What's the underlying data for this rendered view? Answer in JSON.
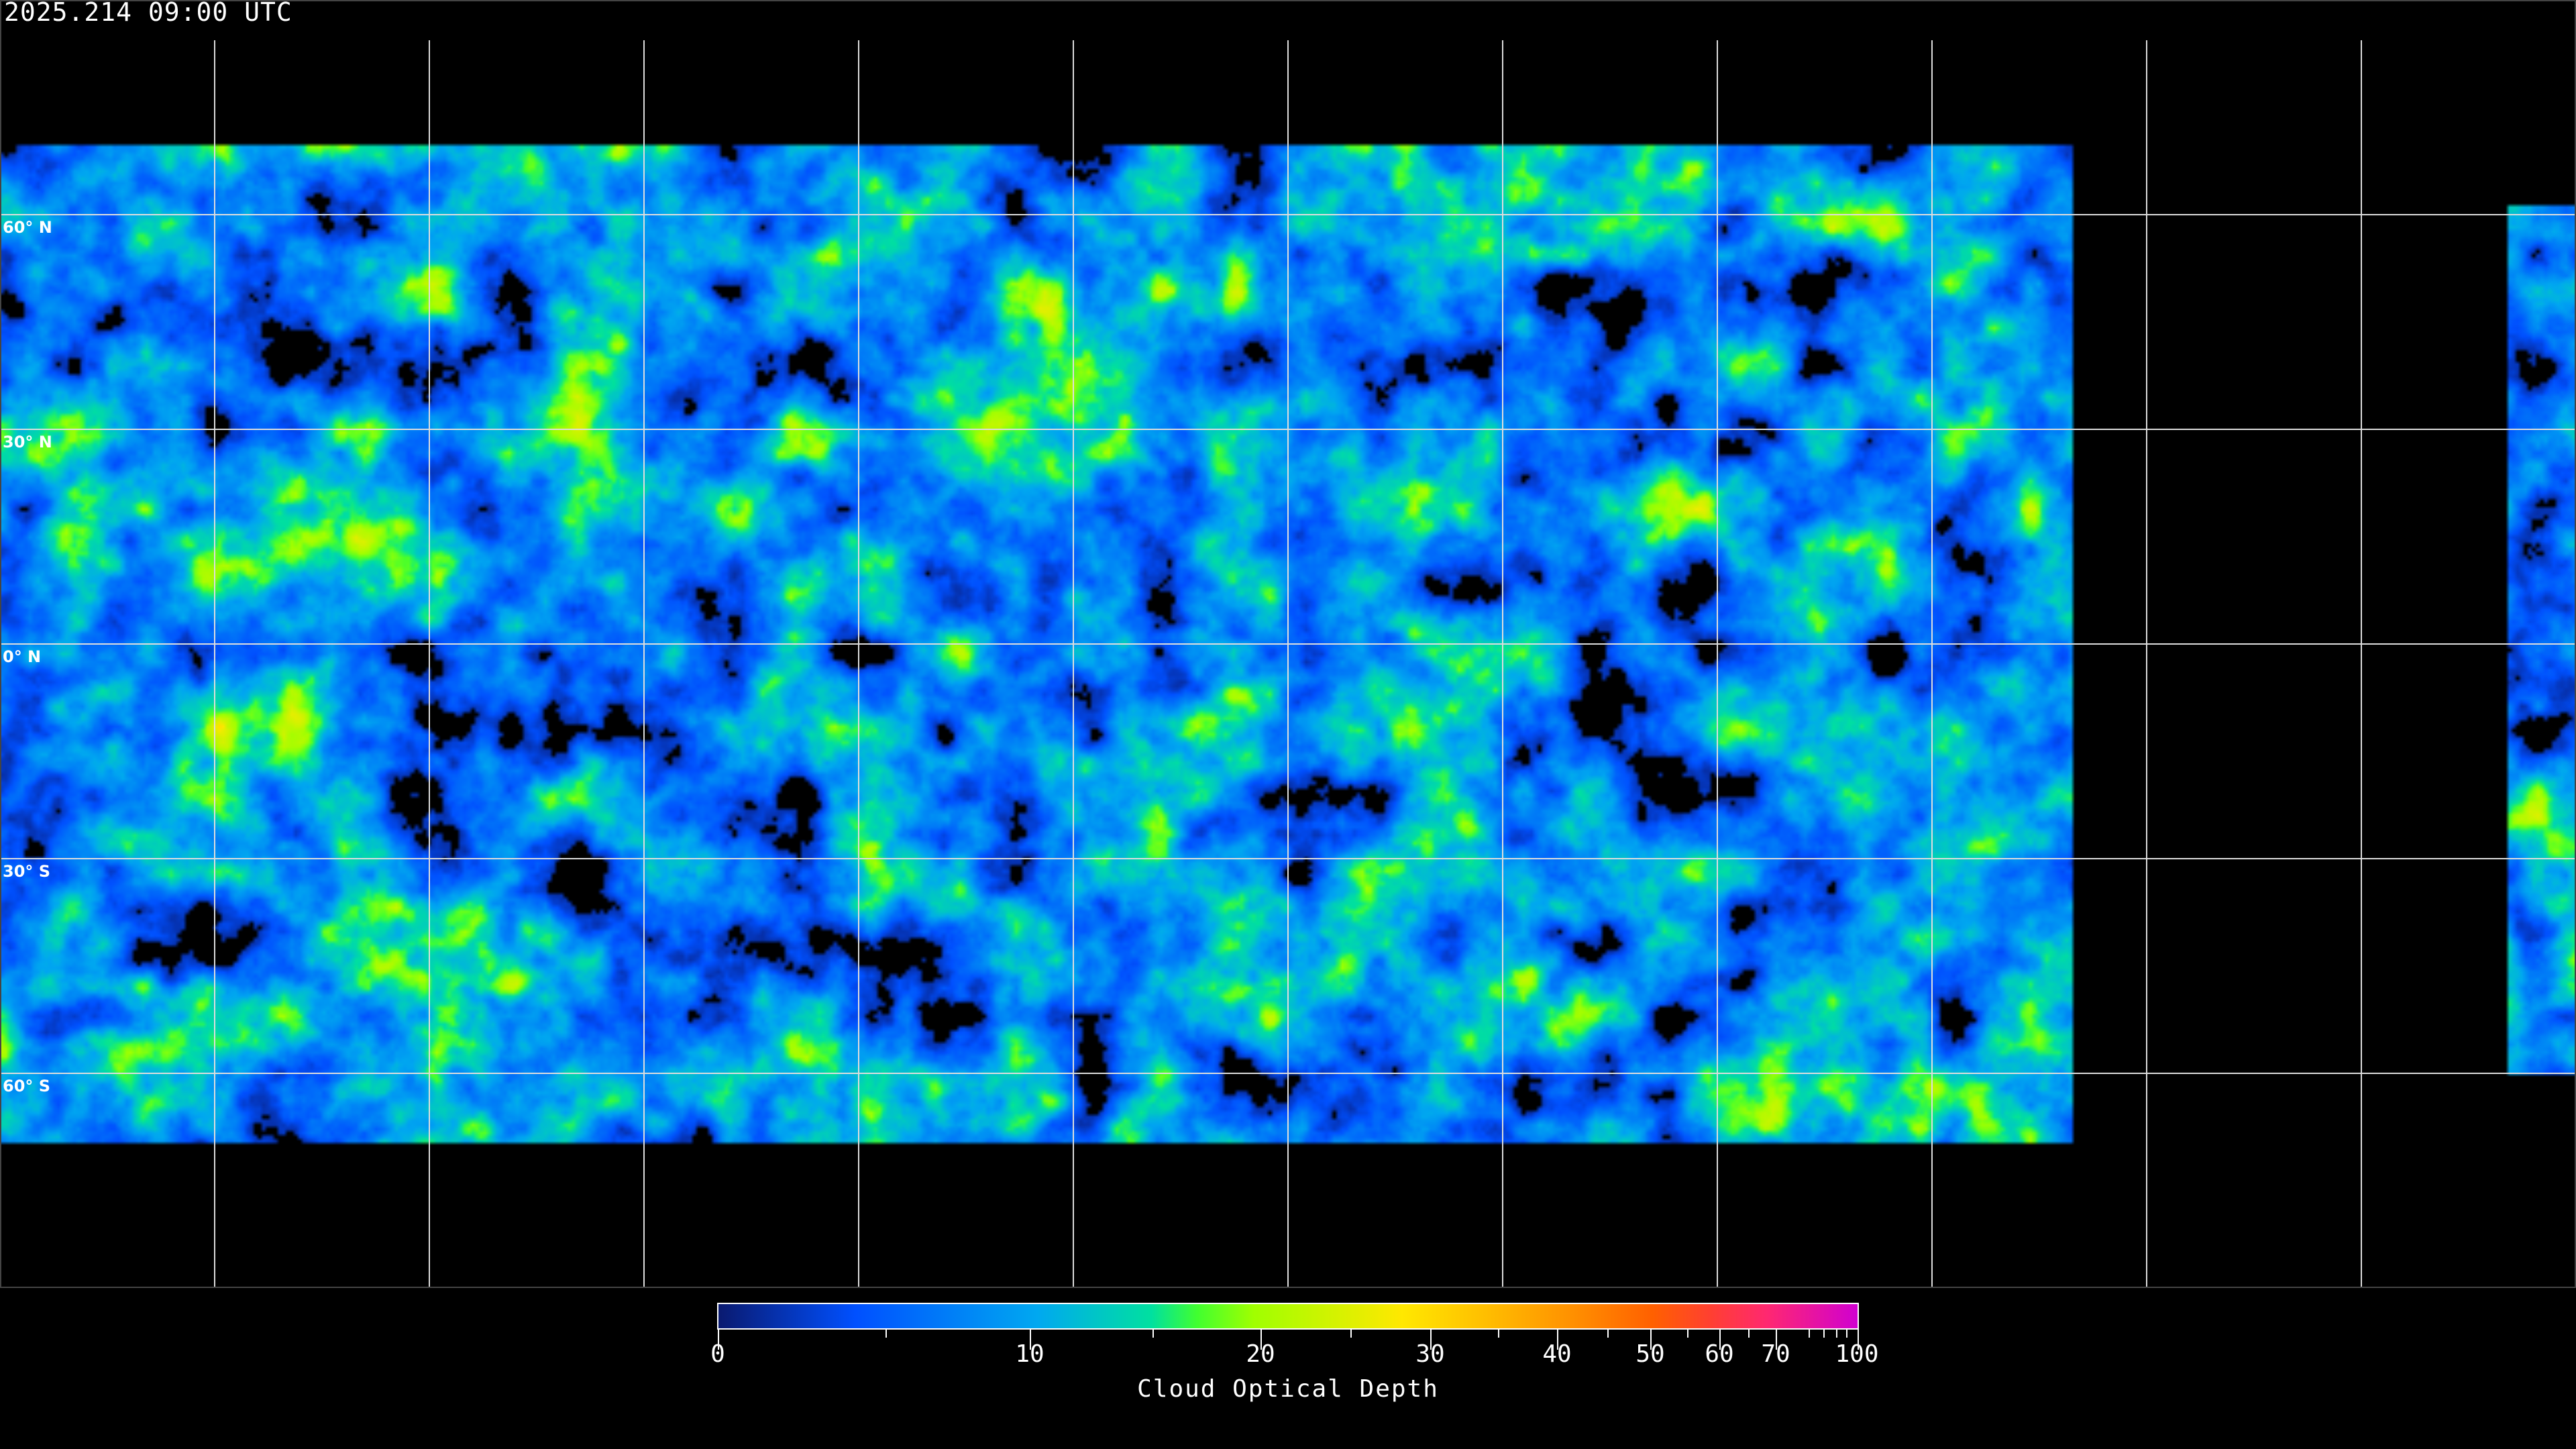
{
  "timestamp": "2025.214 09:00 UTC",
  "latitude_labels": [
    "60° N",
    "30° N",
    "0° N",
    "30° S",
    "60° S"
  ],
  "colorbar": {
    "title": "Cloud Optical Depth",
    "tick_labels": [
      "0",
      "10",
      "20",
      "30",
      "40",
      "50",
      "60",
      "70",
      "100"
    ],
    "colors": [
      "#0a1a70",
      "#0050ff",
      "#00a8f0",
      "#00e0a0",
      "#40ff30",
      "#a0ff00",
      "#ffe800",
      "#ffc000",
      "#ff9000",
      "#ff6000",
      "#ff4030",
      "#ff2870",
      "#d000d0"
    ]
  }
}
